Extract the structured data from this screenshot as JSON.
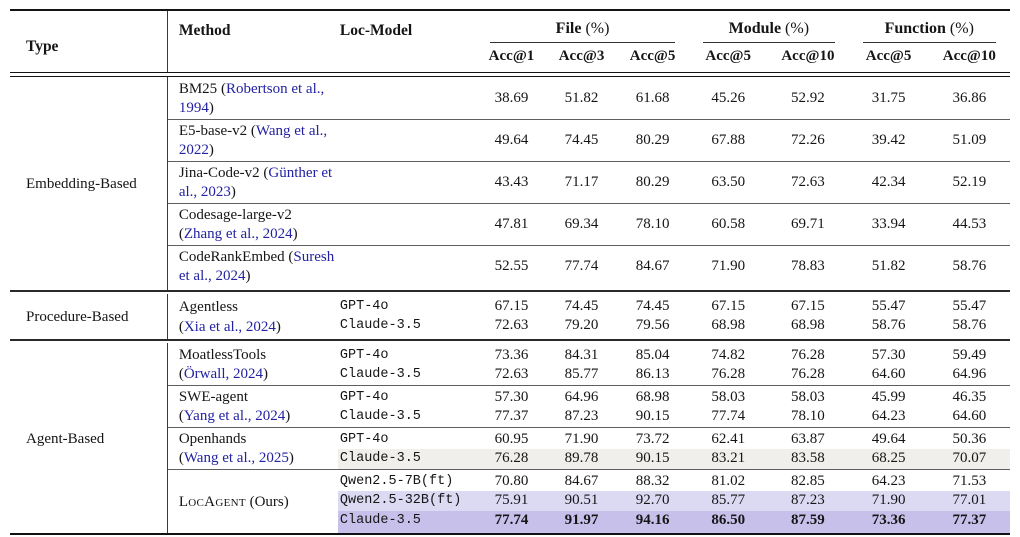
{
  "table": {
    "header": {
      "type": "Type",
      "method": "Method",
      "loc_model": "Loc-Model",
      "groups": [
        {
          "label": "File",
          "unit": "(%)",
          "metrics": [
            "Acc@1",
            "Acc@3",
            "Acc@5"
          ]
        },
        {
          "label": "Module",
          "unit": "(%)",
          "metrics": [
            "Acc@5",
            "Acc@10"
          ]
        },
        {
          "label": "Function",
          "unit": "(%)",
          "metrics": [
            "Acc@5",
            "Acc@10"
          ]
        }
      ]
    },
    "colors": {
      "citation": "#2222a2",
      "highlight_gray": "#f0efec",
      "highlight_purple_light": "#dcd9f3",
      "highlight_purple_dark": "#c7c0eb"
    },
    "sections": [
      {
        "type": "Embedding-Based",
        "groups": [
          {
            "method": {
              "name": "BM25",
              "citation": "Robertson et al., 1994",
              "layout": "inline"
            },
            "rows": [
              {
                "loc_model": "",
                "values": [
                  "38.69",
                  "51.82",
                  "61.68",
                  "45.26",
                  "52.92",
                  "31.75",
                  "36.86"
                ]
              }
            ]
          },
          {
            "method": {
              "name": "E5-base-v2",
              "citation": "Wang et al., 2022",
              "layout": "inline"
            },
            "rows": [
              {
                "loc_model": "",
                "values": [
                  "49.64",
                  "74.45",
                  "80.29",
                  "67.88",
                  "72.26",
                  "39.42",
                  "51.09"
                ]
              }
            ]
          },
          {
            "method": {
              "name": "Jina-Code-v2",
              "citation": "Günther et al., 2023",
              "layout": "inline"
            },
            "rows": [
              {
                "loc_model": "",
                "values": [
                  "43.43",
                  "71.17",
                  "80.29",
                  "63.50",
                  "72.63",
                  "42.34",
                  "52.19"
                ]
              }
            ]
          },
          {
            "method": {
              "name": "Codesage-large-v2",
              "citation": "Zhang et al., 2024",
              "layout": "inline"
            },
            "rows": [
              {
                "loc_model": "",
                "values": [
                  "47.81",
                  "69.34",
                  "78.10",
                  "60.58",
                  "69.71",
                  "33.94",
                  "44.53"
                ]
              }
            ]
          },
          {
            "method": {
              "name": "CodeRankEmbed",
              "citation": "Suresh et al., 2024",
              "layout": "inline"
            },
            "rows": [
              {
                "loc_model": "",
                "values": [
                  "52.55",
                  "77.74",
                  "84.67",
                  "71.90",
                  "78.83",
                  "51.82",
                  "58.76"
                ]
              }
            ]
          }
        ]
      },
      {
        "type": "Procedure-Based",
        "groups": [
          {
            "method": {
              "name": "Agentless",
              "citation": "Xia et al., 2024",
              "layout": "stacked"
            },
            "rows": [
              {
                "loc_model": "GPT-4o",
                "values": [
                  "67.15",
                  "74.45",
                  "74.45",
                  "67.15",
                  "67.15",
                  "55.47",
                  "55.47"
                ]
              },
              {
                "loc_model": "Claude-3.5",
                "values": [
                  "72.63",
                  "79.20",
                  "79.56",
                  "68.98",
                  "68.98",
                  "58.76",
                  "58.76"
                ]
              }
            ]
          }
        ]
      },
      {
        "type": "Agent-Based",
        "groups": [
          {
            "method": {
              "name": "MoatlessTools",
              "citation": "Örwall, 2024",
              "layout": "stacked"
            },
            "rows": [
              {
                "loc_model": "GPT-4o",
                "values": [
                  "73.36",
                  "84.31",
                  "85.04",
                  "74.82",
                  "76.28",
                  "57.30",
                  "59.49"
                ]
              },
              {
                "loc_model": "Claude-3.5",
                "values": [
                  "72.63",
                  "85.77",
                  "86.13",
                  "76.28",
                  "76.28",
                  "64.60",
                  "64.96"
                ]
              }
            ]
          },
          {
            "method": {
              "name": "SWE-agent",
              "citation": "Yang et al., 2024",
              "layout": "stacked"
            },
            "rows": [
              {
                "loc_model": "GPT-4o",
                "values": [
                  "57.30",
                  "64.96",
                  "68.98",
                  "58.03",
                  "58.03",
                  "45.99",
                  "46.35"
                ]
              },
              {
                "loc_model": "Claude-3.5",
                "values": [
                  "77.37",
                  "87.23",
                  "90.15",
                  "77.74",
                  "78.10",
                  "64.23",
                  "64.60"
                ]
              }
            ]
          },
          {
            "method": {
              "name": "Openhands",
              "citation": "Wang et al., 2025",
              "layout": "stacked"
            },
            "rows": [
              {
                "loc_model": "GPT-4o",
                "values": [
                  "60.95",
                  "71.90",
                  "73.72",
                  "62.41",
                  "63.87",
                  "49.64",
                  "50.36"
                ]
              },
              {
                "loc_model": "Claude-3.5",
                "highlight": "gray",
                "values": [
                  "76.28",
                  "89.78",
                  "90.15",
                  "83.21",
                  "83.58",
                  "68.25",
                  "70.07"
                ]
              }
            ]
          },
          {
            "method": {
              "name": "LocAgent",
              "suffix": "(Ours)",
              "style": "smallcaps",
              "layout": "plain"
            },
            "rows": [
              {
                "loc_model": "Qwen2.5-7B(ft)",
                "values": [
                  "70.80",
                  "84.67",
                  "88.32",
                  "81.02",
                  "82.85",
                  "64.23",
                  "71.53"
                ]
              },
              {
                "loc_model": "Qwen2.5-32B(ft)",
                "highlight": "purple_light",
                "values": [
                  "75.91",
                  "90.51",
                  "92.70",
                  "85.77",
                  "87.23",
                  "71.90",
                  "77.01"
                ]
              },
              {
                "loc_model": "Claude-3.5",
                "highlight": "purple_dark",
                "emphasis": "bold",
                "values": [
                  "77.74",
                  "91.97",
                  "94.16",
                  "86.50",
                  "87.59",
                  "73.36",
                  "77.37"
                ]
              }
            ]
          }
        ]
      }
    ]
  }
}
